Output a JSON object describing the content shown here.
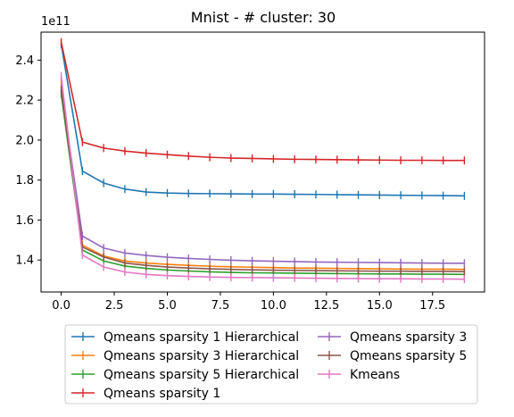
{
  "chart_data": {
    "type": "line",
    "title": "Mnist - # cluster: 30",
    "xlabel": "",
    "ylabel": "",
    "y_multiplier_label": "1e11",
    "y_multiplier": 100000000000,
    "xlim": [
      -0.95,
      19.95
    ],
    "ylim": [
      124000000000,
      254000000000
    ],
    "x_ticks": [
      0.0,
      2.5,
      5.0,
      7.5,
      10.0,
      12.5,
      15.0,
      17.5
    ],
    "x_tick_labels": [
      "0.0",
      "2.5",
      "5.0",
      "7.5",
      "10.0",
      "12.5",
      "15.0",
      "17.5"
    ],
    "y_ticks": [
      140000000000,
      160000000000,
      180000000000,
      200000000000,
      220000000000,
      240000000000
    ],
    "y_tick_labels": [
      "1.4",
      "1.6",
      "1.8",
      "2.0",
      "2.2",
      "2.4"
    ],
    "grid": false,
    "legend_position": "below the plot, two columns",
    "x": [
      0,
      1,
      2,
      3,
      4,
      5,
      6,
      7,
      8,
      9,
      10,
      11,
      12,
      13,
      14,
      15,
      16,
      17,
      18,
      19
    ],
    "series": [
      {
        "name": "Qmeans sparsity 1 Hierarchical",
        "color": "#1f77b4",
        "values": [
          248000000000,
          184500000000,
          178500000000,
          175500000000,
          174000000000,
          173500000000,
          173300000000,
          173200000000,
          173100000000,
          173000000000,
          173000000000,
          172900000000,
          172800000000,
          172700000000,
          172600000000,
          172500000000,
          172400000000,
          172300000000,
          172200000000,
          172100000000
        ]
      },
      {
        "name": "Qmeans sparsity 3 Hierarchical",
        "color": "#ff7f0e",
        "values": [
          229000000000,
          147500000000,
          142000000000,
          139500000000,
          138500000000,
          137800000000,
          137300000000,
          136900000000,
          136600000000,
          136400000000,
          136200000000,
          136000000000,
          135900000000,
          135800000000,
          135700000000,
          135600000000,
          135500000000,
          135400000000,
          135400000000,
          135300000000
        ]
      },
      {
        "name": "Qmeans sparsity 5 Hierarchical",
        "color": "#2ca02c",
        "values": [
          223000000000,
          145000000000,
          139500000000,
          137000000000,
          135800000000,
          135000000000,
          134500000000,
          134100000000,
          133800000000,
          133600000000,
          133500000000,
          133400000000,
          133300000000,
          133200000000,
          133100000000,
          133000000000,
          133000000000,
          132900000000,
          132900000000,
          132800000000
        ]
      },
      {
        "name": "Qmeans sparsity 1",
        "color": "#d62728",
        "values": [
          249000000000,
          199000000000,
          196000000000,
          194500000000,
          193500000000,
          192700000000,
          192000000000,
          191400000000,
          191000000000,
          190800000000,
          190600000000,
          190400000000,
          190300000000,
          190200000000,
          190100000000,
          190000000000,
          189900000000,
          189900000000,
          189800000000,
          189800000000
        ]
      },
      {
        "name": "Qmeans sparsity 3",
        "color": "#9467bd",
        "values": [
          226000000000,
          152000000000,
          146000000000,
          143500000000,
          142300000000,
          141400000000,
          140800000000,
          140300000000,
          139900000000,
          139600000000,
          139400000000,
          139200000000,
          139000000000,
          138900000000,
          138800000000,
          138700000000,
          138600000000,
          138500000000,
          138400000000,
          138400000000
        ]
      },
      {
        "name": "Qmeans sparsity 5",
        "color": "#8c564b",
        "values": [
          225000000000,
          146500000000,
          141500000000,
          138500000000,
          137300000000,
          136500000000,
          136000000000,
          135600000000,
          135300000000,
          135100000000,
          134900000000,
          134800000000,
          134700000000,
          134600000000,
          134500000000,
          134400000000,
          134400000000,
          134300000000,
          134300000000,
          134200000000
        ]
      },
      {
        "name": "Kmeans",
        "color": "#e377c2",
        "values": [
          232000000000,
          142500000000,
          136500000000,
          134000000000,
          132800000000,
          132200000000,
          131800000000,
          131500000000,
          131300000000,
          131200000000,
          131100000000,
          131000000000,
          130900000000,
          130800000000,
          130700000000,
          130600000000,
          130600000000,
          130500000000,
          130500000000,
          130400000000
        ]
      }
    ]
  }
}
